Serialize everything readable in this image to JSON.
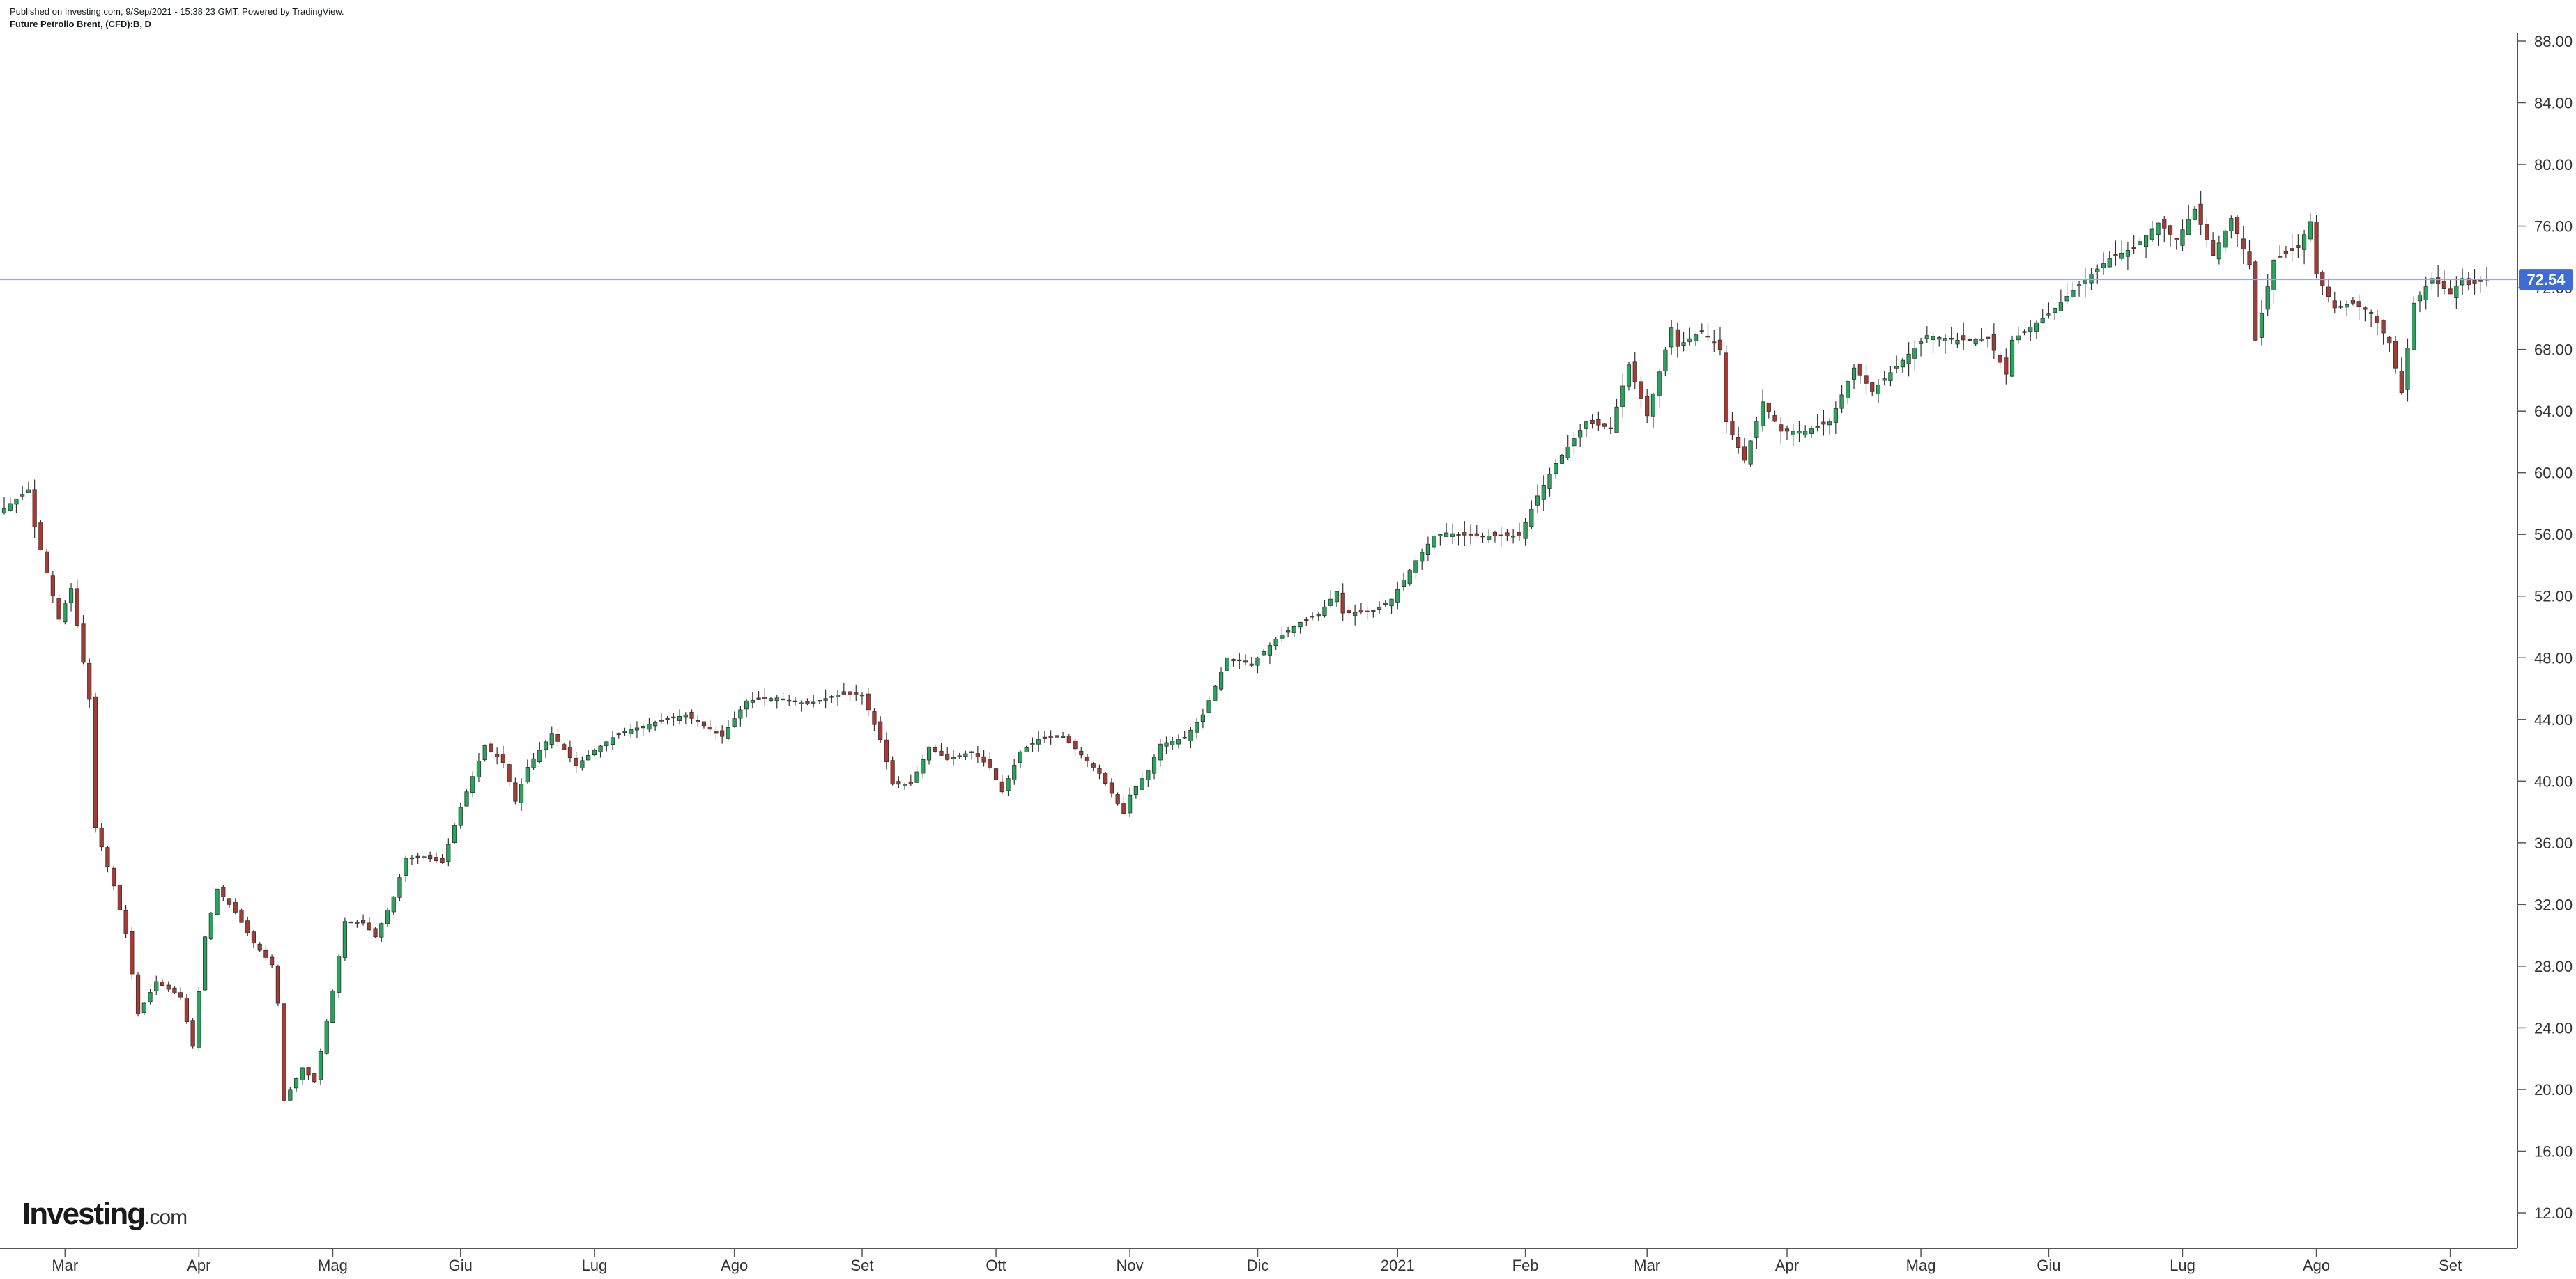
{
  "header": {
    "published": "Published on Investing.com, 9/Sep/2021 - 15:38:23 GMT, Powered by TradingView.",
    "symbol": "Future Petrolio Brent, (CFD):B, D"
  },
  "logo": {
    "brand": "Investing",
    "suffix": ".com"
  },
  "colors": {
    "up": "#26a65b",
    "down": "#a83a32",
    "wick": "#333333",
    "price_line": "#9aa7f0",
    "price_badge": "#3f6bd6",
    "axis": "#555555",
    "text": "#333333"
  },
  "chart_data": {
    "type": "candlestick",
    "title": "Future Petrolio Brent, (CFD):B, D",
    "ylim": [
      10,
      89
    ],
    "y_ticks": [
      12,
      16,
      20,
      24,
      28,
      32,
      36,
      40,
      44,
      48,
      52,
      56,
      60,
      64,
      68,
      72,
      76,
      80,
      84,
      88
    ],
    "y_tick_labels": [
      "12.00",
      "16.00",
      "20.00",
      "24.00",
      "28.00",
      "32.00",
      "36.00",
      "40.00",
      "44.00",
      "48.00",
      "52.00",
      "56.00",
      "60.00",
      "64.00",
      "68.00",
      "72.00",
      "76.00",
      "80.00",
      "84.00",
      "88.00"
    ],
    "x_labels": [
      {
        "label": "Mar",
        "date": "2020-03-01"
      },
      {
        "label": "Apr",
        "date": "2020-04-01"
      },
      {
        "label": "Mag",
        "date": "2020-05-01"
      },
      {
        "label": "Giu",
        "date": "2020-06-01"
      },
      {
        "label": "Lug",
        "date": "2020-07-01"
      },
      {
        "label": "Ago",
        "date": "2020-08-01"
      },
      {
        "label": "Set",
        "date": "2020-09-01"
      },
      {
        "label": "Ott",
        "date": "2020-10-01"
      },
      {
        "label": "Nov",
        "date": "2020-11-01"
      },
      {
        "label": "Dic",
        "date": "2020-12-01"
      },
      {
        "label": "2021",
        "date": "2021-01-01"
      },
      {
        "label": "Feb",
        "date": "2021-02-01"
      },
      {
        "label": "Mar",
        "date": "2021-03-01"
      },
      {
        "label": "Apr",
        "date": "2021-04-01"
      },
      {
        "label": "Mag",
        "date": "2021-05-01"
      },
      {
        "label": "Giu",
        "date": "2021-06-01"
      },
      {
        "label": "Lug",
        "date": "2021-07-01"
      },
      {
        "label": "Ago",
        "date": "2021-08-01"
      },
      {
        "label": "Set",
        "date": "2021-09-01"
      }
    ],
    "x_range": [
      "2020-02-17",
      "2021-09-18"
    ],
    "gap": {
      "from": "2020-03-07",
      "to": "2020-03-09"
    },
    "last_price": 72.54,
    "last_price_label": "72.54",
    "closes": [
      {
        "date": "2020-02-17",
        "close": 57.7
      },
      {
        "date": "2020-02-21",
        "close": 58.9
      },
      {
        "date": "2020-02-24",
        "close": 56.5
      },
      {
        "date": "2020-02-28",
        "close": 50.5
      },
      {
        "date": "2020-03-03",
        "close": 52.5
      },
      {
        "date": "2020-03-06",
        "close": 45.3
      },
      {
        "date": "2020-03-09",
        "close": 37.0
      },
      {
        "date": "2020-03-12",
        "close": 33.2
      },
      {
        "date": "2020-03-16",
        "close": 30.1
      },
      {
        "date": "2020-03-18",
        "close": 24.9
      },
      {
        "date": "2020-03-23",
        "close": 27.0
      },
      {
        "date": "2020-03-27",
        "close": 26.0
      },
      {
        "date": "2020-03-31",
        "close": 22.8
      },
      {
        "date": "2020-04-02",
        "close": 29.9
      },
      {
        "date": "2020-04-06",
        "close": 33.0
      },
      {
        "date": "2020-04-09",
        "close": 31.5
      },
      {
        "date": "2020-04-14",
        "close": 29.5
      },
      {
        "date": "2020-04-17",
        "close": 28.1
      },
      {
        "date": "2020-04-20",
        "close": 25.6
      },
      {
        "date": "2020-04-21",
        "close": 19.3
      },
      {
        "date": "2020-04-24",
        "close": 21.4
      },
      {
        "date": "2020-04-28",
        "close": 20.5
      },
      {
        "date": "2020-05-01",
        "close": 26.4
      },
      {
        "date": "2020-05-05",
        "close": 30.9
      },
      {
        "date": "2020-05-08",
        "close": 30.8
      },
      {
        "date": "2020-05-12",
        "close": 29.9
      },
      {
        "date": "2020-05-15",
        "close": 32.5
      },
      {
        "date": "2020-05-19",
        "close": 35.0
      },
      {
        "date": "2020-05-22",
        "close": 35.1
      },
      {
        "date": "2020-05-27",
        "close": 34.7
      },
      {
        "date": "2020-06-01",
        "close": 38.3
      },
      {
        "date": "2020-06-05",
        "close": 42.3
      },
      {
        "date": "2020-06-10",
        "close": 41.2
      },
      {
        "date": "2020-06-12",
        "close": 38.7
      },
      {
        "date": "2020-06-16",
        "close": 40.9
      },
      {
        "date": "2020-06-22",
        "close": 43.1
      },
      {
        "date": "2020-06-26",
        "close": 41.0
      },
      {
        "date": "2020-07-01",
        "close": 42.0
      },
      {
        "date": "2020-07-07",
        "close": 43.1
      },
      {
        "date": "2020-07-15",
        "close": 43.8
      },
      {
        "date": "2020-07-22",
        "close": 44.3
      },
      {
        "date": "2020-07-30",
        "close": 42.9
      },
      {
        "date": "2020-08-05",
        "close": 45.2
      },
      {
        "date": "2020-08-12",
        "close": 45.4
      },
      {
        "date": "2020-08-19",
        "close": 45.0
      },
      {
        "date": "2020-08-26",
        "close": 45.6
      },
      {
        "date": "2020-09-01",
        "close": 45.6
      },
      {
        "date": "2020-09-04",
        "close": 42.7
      },
      {
        "date": "2020-09-08",
        "close": 39.8
      },
      {
        "date": "2020-09-11",
        "close": 39.8
      },
      {
        "date": "2020-09-16",
        "close": 42.2
      },
      {
        "date": "2020-09-21",
        "close": 41.4
      },
      {
        "date": "2020-09-25",
        "close": 41.9
      },
      {
        "date": "2020-09-30",
        "close": 40.9
      },
      {
        "date": "2020-10-02",
        "close": 39.3
      },
      {
        "date": "2020-10-07",
        "close": 41.9
      },
      {
        "date": "2020-10-12",
        "close": 42.7
      },
      {
        "date": "2020-10-16",
        "close": 42.9
      },
      {
        "date": "2020-10-21",
        "close": 41.7
      },
      {
        "date": "2020-10-26",
        "close": 40.5
      },
      {
        "date": "2020-10-30",
        "close": 37.9
      },
      {
        "date": "2020-11-02",
        "close": 39.1
      },
      {
        "date": "2020-11-05",
        "close": 40.7
      },
      {
        "date": "2020-11-09",
        "close": 42.4
      },
      {
        "date": "2020-11-13",
        "close": 42.8
      },
      {
        "date": "2020-11-18",
        "close": 44.3
      },
      {
        "date": "2020-11-24",
        "close": 48.0
      },
      {
        "date": "2020-11-30",
        "close": 47.6
      },
      {
        "date": "2020-12-04",
        "close": 49.2
      },
      {
        "date": "2020-12-10",
        "close": 50.3
      },
      {
        "date": "2020-12-15",
        "close": 50.8
      },
      {
        "date": "2020-12-18",
        "close": 52.3
      },
      {
        "date": "2020-12-21",
        "close": 50.9
      },
      {
        "date": "2020-12-28",
        "close": 51.0
      },
      {
        "date": "2020-12-31",
        "close": 51.8
      },
      {
        "date": "2021-01-06",
        "close": 54.3
      },
      {
        "date": "2021-01-11",
        "close": 55.9
      },
      {
        "date": "2021-01-13",
        "close": 56.1
      },
      {
        "date": "2021-01-19",
        "close": 55.9
      },
      {
        "date": "2021-01-25",
        "close": 55.9
      },
      {
        "date": "2021-01-29",
        "close": 55.9
      },
      {
        "date": "2021-02-03",
        "close": 58.5
      },
      {
        "date": "2021-02-08",
        "close": 60.6
      },
      {
        "date": "2021-02-15",
        "close": 63.3
      },
      {
        "date": "2021-02-19",
        "close": 62.9
      },
      {
        "date": "2021-02-24",
        "close": 67.0
      },
      {
        "date": "2021-03-01",
        "close": 63.7
      },
      {
        "date": "2021-03-05",
        "close": 69.4
      },
      {
        "date": "2021-03-08",
        "close": 68.2
      },
      {
        "date": "2021-03-12",
        "close": 69.2
      },
      {
        "date": "2021-03-17",
        "close": 68.0
      },
      {
        "date": "2021-03-18",
        "close": 63.3
      },
      {
        "date": "2021-03-23",
        "close": 60.8
      },
      {
        "date": "2021-03-26",
        "close": 64.6
      },
      {
        "date": "2021-03-31",
        "close": 62.7
      },
      {
        "date": "2021-04-06",
        "close": 62.7
      },
      {
        "date": "2021-04-12",
        "close": 63.3
      },
      {
        "date": "2021-04-16",
        "close": 66.8
      },
      {
        "date": "2021-04-21",
        "close": 65.3
      },
      {
        "date": "2021-04-28",
        "close": 67.3
      },
      {
        "date": "2021-05-04",
        "close": 68.9
      },
      {
        "date": "2021-05-11",
        "close": 68.6
      },
      {
        "date": "2021-05-18",
        "close": 68.7
      },
      {
        "date": "2021-05-21",
        "close": 66.4
      },
      {
        "date": "2021-05-24",
        "close": 68.6
      },
      {
        "date": "2021-06-01",
        "close": 70.3
      },
      {
        "date": "2021-06-08",
        "close": 72.2
      },
      {
        "date": "2021-06-15",
        "close": 73.9
      },
      {
        "date": "2021-06-21",
        "close": 74.6
      },
      {
        "date": "2021-06-25",
        "close": 76.2
      },
      {
        "date": "2021-06-30",
        "close": 75.1
      },
      {
        "date": "2021-07-05",
        "close": 77.1
      },
      {
        "date": "2021-07-08",
        "close": 74.1
      },
      {
        "date": "2021-07-13",
        "close": 76.5
      },
      {
        "date": "2021-07-16",
        "close": 73.5
      },
      {
        "date": "2021-07-19",
        "close": 68.6
      },
      {
        "date": "2021-07-22",
        "close": 73.8
      },
      {
        "date": "2021-07-28",
        "close": 74.6
      },
      {
        "date": "2021-07-30",
        "close": 76.3
      },
      {
        "date": "2021-08-02",
        "close": 72.9
      },
      {
        "date": "2021-08-05",
        "close": 70.7
      },
      {
        "date": "2021-08-10",
        "close": 71.0
      },
      {
        "date": "2021-08-13",
        "close": 70.4
      },
      {
        "date": "2021-08-18",
        "close": 68.4
      },
      {
        "date": "2021-08-20",
        "close": 65.2
      },
      {
        "date": "2021-08-24",
        "close": 71.0
      },
      {
        "date": "2021-08-27",
        "close": 72.6
      },
      {
        "date": "2021-09-01",
        "close": 71.6
      },
      {
        "date": "2021-09-03",
        "close": 72.6
      },
      {
        "date": "2021-09-06",
        "close": 72.2
      },
      {
        "date": "2021-09-09",
        "close": 72.5
      }
    ]
  }
}
